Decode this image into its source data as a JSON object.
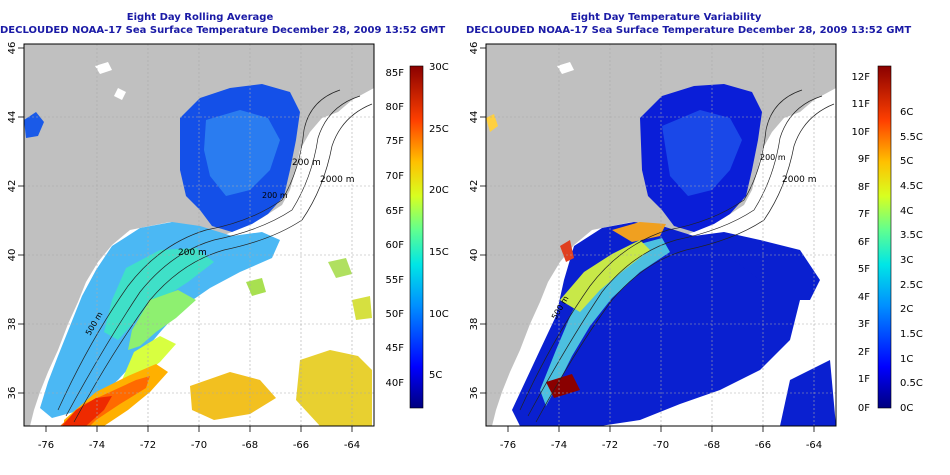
{
  "left_panel": {
    "title": "Eight Day Rolling Average",
    "subtitle": "DECLOUDED NOAA-17 Sea Surface Temperature December 28, 2009 13:52 GMT",
    "contour_labels": [
      "200 m",
      "2000 m",
      "200 m",
      "500 m",
      "200 m"
    ],
    "colorbar": {
      "f_labels": [
        "85F",
        "80F",
        "75F",
        "70F",
        "65F",
        "60F",
        "55F",
        "50F",
        "45F",
        "40F"
      ],
      "c_labels": [
        "30C",
        "25C",
        "20C",
        "15C",
        "10C",
        "5C"
      ]
    }
  },
  "right_panel": {
    "title": "Eight Day Temperature Variability",
    "subtitle": "DECLOUDED NOAA-17 Sea Surface Temperature December 28, 2009 13:52 GMT",
    "contour_labels": [
      "2000 m",
      "500 m",
      "200 m"
    ],
    "colorbar": {
      "f_labels": [
        "12F",
        "11F",
        "10F",
        "9F",
        "8F",
        "7F",
        "6F",
        "5F",
        "4F",
        "3F",
        "2F",
        "1F",
        "0F"
      ],
      "c_labels": [
        "6C",
        "5.5C",
        "5C",
        "4.5C",
        "4C",
        "3.5C",
        "3C",
        "2.5C",
        "2C",
        "1.5C",
        "1C",
        "0.5C",
        "0C"
      ]
    }
  },
  "axes": {
    "x_ticks": [
      "-76",
      "-74",
      "-72",
      "-70",
      "-68",
      "-66",
      "-64"
    ],
    "y_ticks": [
      "46",
      "44",
      "42",
      "40",
      "38",
      "36"
    ]
  },
  "colors": {
    "land": "#c0c0c0",
    "title_text": "#1a1aa6",
    "grid": "#aaaaaa"
  }
}
